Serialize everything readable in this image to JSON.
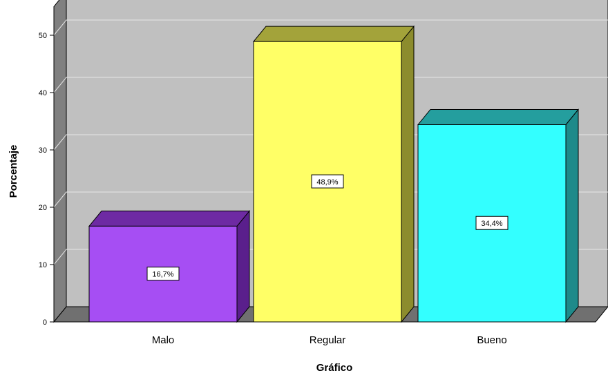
{
  "chart_data": {
    "type": "bar",
    "title": "",
    "xlabel": "Gráfico",
    "ylabel": "Porcentaje",
    "categories": [
      "Malo",
      "Regular",
      "Bueno"
    ],
    "values": [
      16.7,
      48.9,
      34.4
    ],
    "data_labels": [
      "16,7%",
      "48,9%",
      "34,4%"
    ],
    "yticks": [
      "0",
      "10",
      "20",
      "30",
      "40",
      "50"
    ],
    "ylim": [
      0,
      55
    ],
    "grid": true,
    "style": "3d",
    "colors": {
      "front": [
        "#a64ef3",
        "#ffff66",
        "#33ffff"
      ],
      "top": [
        "#6e2aa3",
        "#a3a33a",
        "#249e9e"
      ],
      "side": [
        "#5a1f8c",
        "#8c8c2d",
        "#1e8a8a"
      ],
      "plot_back": "#c0c0c0",
      "plot_floor": "#707070",
      "plot_wall": "#808080",
      "gridline": "#e6e6e6"
    }
  }
}
